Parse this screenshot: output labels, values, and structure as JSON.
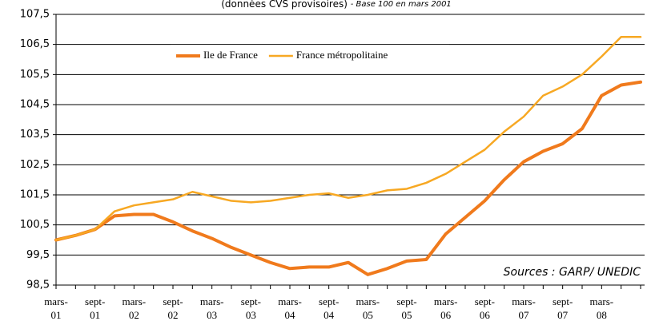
{
  "chart_data": {
    "type": "line",
    "title": "(données CVS provisoires)",
    "subtitle": "- Base 100 en mars 2001",
    "annotation": "Sources : GARP/ UNEDIC",
    "categories": [
      "mars-01",
      null,
      "sept-01",
      null,
      "mars-02",
      null,
      "sept-02",
      null,
      "mars-03",
      null,
      "sept-03",
      null,
      "mars-04",
      null,
      "sept-04",
      null,
      "mars-05",
      null,
      "sept-05",
      null,
      "mars-06",
      null,
      "sept-06",
      null,
      "mars-07",
      null,
      "sept-07",
      null,
      "mars-08",
      null,
      null
    ],
    "series": [
      {
        "name": "Ile de France",
        "color": "#f07a1c",
        "values": [
          100,
          100.15,
          100.35,
          100.8,
          100.85,
          100.85,
          100.6,
          100.3,
          100.05,
          99.75,
          99.5,
          99.25,
          99.05,
          99.1,
          99.1,
          99.25,
          98.85,
          99.05,
          99.3,
          99.35,
          100.2,
          100.75,
          101.3,
          102.0,
          102.6,
          102.95,
          103.2,
          103.7,
          104.8,
          105.15,
          105.25
        ]
      },
      {
        "name": "France métropolitaine",
        "color": "#f7a823",
        "values": [
          100,
          100.15,
          100.35,
          100.95,
          101.15,
          101.25,
          101.35,
          101.6,
          101.45,
          101.3,
          101.25,
          101.3,
          101.4,
          101.5,
          101.55,
          101.4,
          101.5,
          101.65,
          101.7,
          101.9,
          102.2,
          102.6,
          103.0,
          103.6,
          104.1,
          104.8,
          105.1,
          105.5,
          106.1,
          106.75,
          106.75
        ]
      }
    ],
    "ylim": [
      98.5,
      107.5
    ],
    "yticks": [
      {
        "value": 98.5,
        "label": "98,5"
      },
      {
        "value": 99.5,
        "label": "99,5"
      },
      {
        "value": 100.5,
        "label": "100,5"
      },
      {
        "value": 101.5,
        "label": "101,5"
      },
      {
        "value": 102.5,
        "label": "102,5"
      },
      {
        "value": 103.5,
        "label": "103,5"
      },
      {
        "value": 104.5,
        "label": "104,5"
      },
      {
        "value": 105.5,
        "label": "105,5"
      },
      {
        "value": 106.5,
        "label": "106,5"
      },
      {
        "value": 107.5,
        "label": "107,5"
      }
    ],
    "grid": true,
    "legend": "top"
  }
}
